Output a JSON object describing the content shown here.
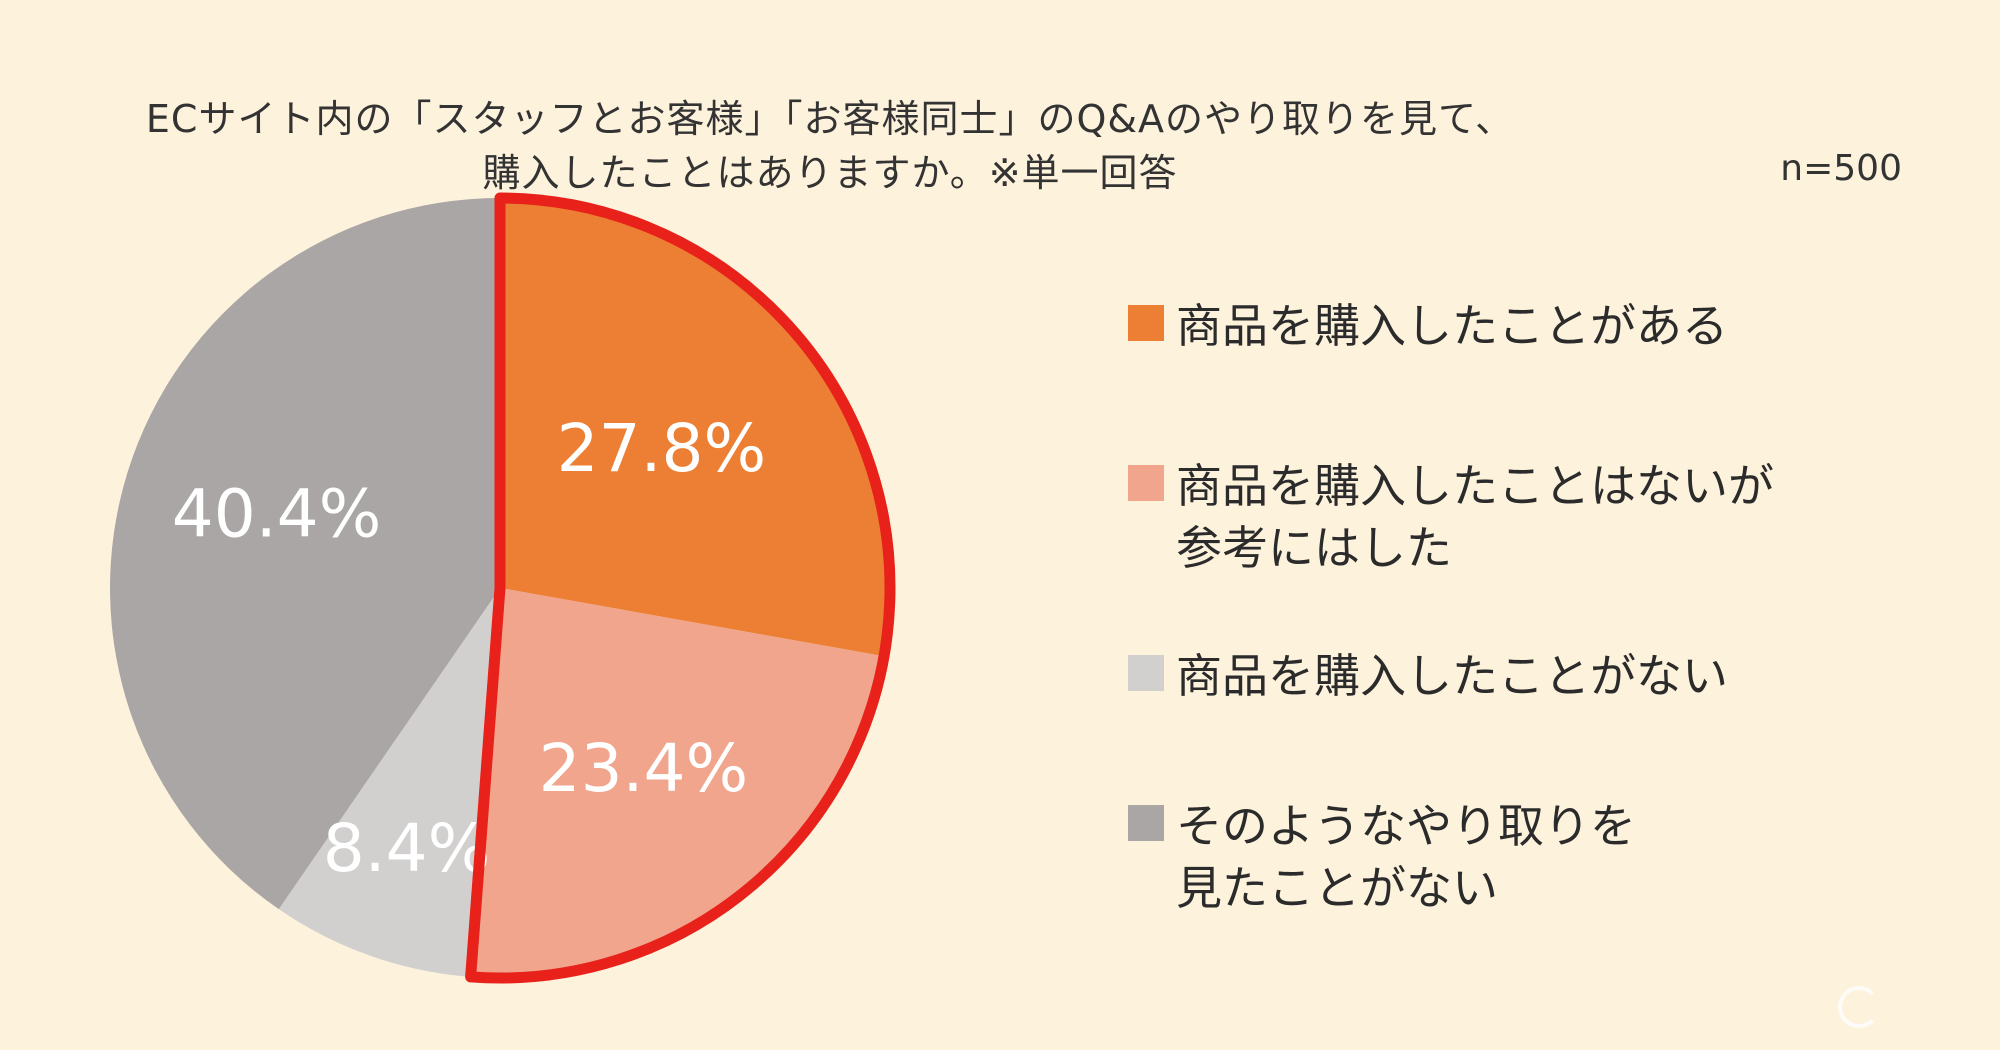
{
  "chart_data": {
    "type": "pie",
    "title_lines": [
      "ECサイト内の「スタッフとお客様」「お客様同士」のQ&Aのやり取りを見て、",
      "購入したことはありますか。※単一回答"
    ],
    "sample_size": "n=500",
    "slices": [
      {
        "value": 27.8,
        "label": "27.8%",
        "legend_lines": [
          "商品を購入したことがある"
        ],
        "color": "#ec7f34"
      },
      {
        "value": 23.4,
        "label": "23.4%",
        "legend_lines": [
          "商品を購入したことはないが",
          "参考にはした"
        ],
        "color": "#f0a58c"
      },
      {
        "value": 8.4,
        "label": "8.4%",
        "legend_lines": [
          "商品を購入したことがない"
        ],
        "color": "#d2cfcf"
      },
      {
        "value": 40.4,
        "label": "40.4%",
        "legend_lines": [
          "そのようなやり取りを",
          "見たことがない"
        ],
        "color": "#aaa6a6"
      }
    ],
    "highlight_color": "#e8211b",
    "highlighted_slices": [
      0,
      1
    ],
    "legend_placement": "right"
  }
}
